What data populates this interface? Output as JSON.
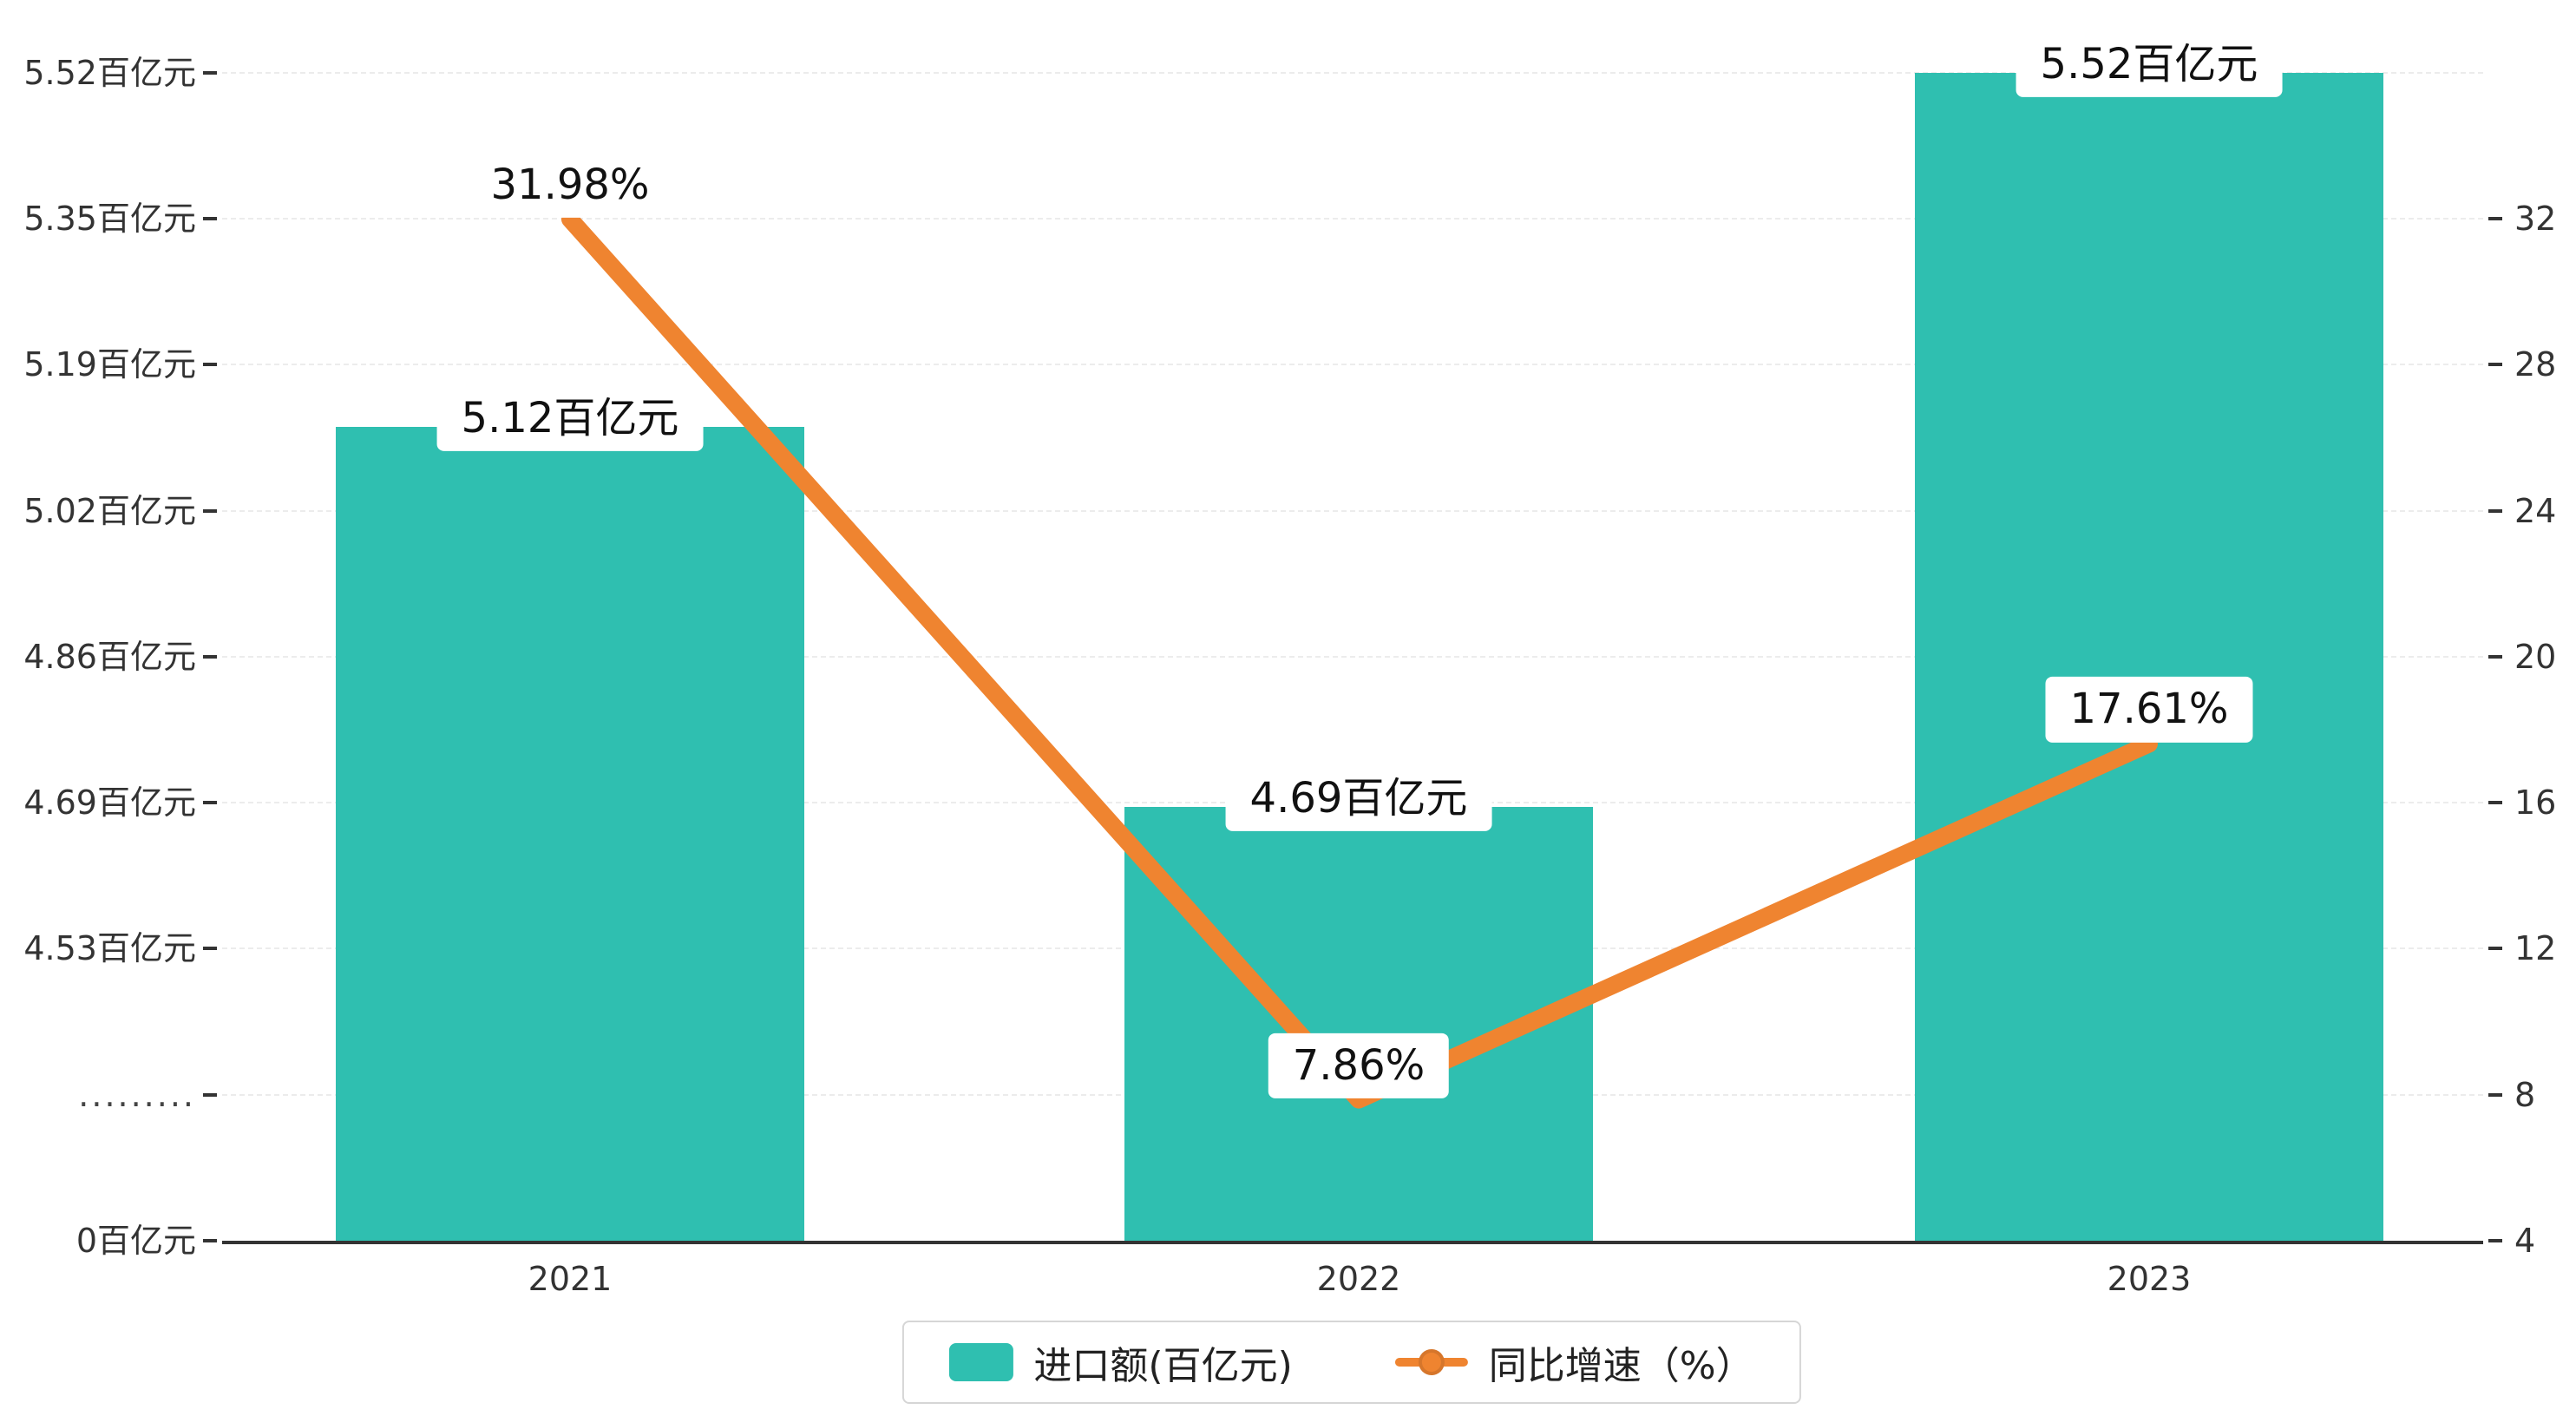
{
  "chart_data": {
    "type": "bar",
    "combo": "bar+line dual-axis",
    "categories": [
      "2021",
      "2022",
      "2023"
    ],
    "series": [
      {
        "name": "进口额(百亿元)",
        "type": "bar",
        "axis": "left",
        "color": "#2fbfb0",
        "values": [
          5.12,
          4.69,
          5.52
        ],
        "labels": [
          "5.12百亿元",
          "4.69百亿元",
          "5.52百亿元"
        ]
      },
      {
        "name": "同比增速（%）",
        "type": "line",
        "axis": "right",
        "color": "#ef8430",
        "values": [
          31.98,
          7.86,
          17.61
        ],
        "labels": [
          "31.98%",
          "7.86%",
          "17.61%"
        ]
      }
    ],
    "left_axis": {
      "tick_labels": [
        "5.52百亿元",
        "5.35百亿元",
        "5.19百亿元",
        "5.02百亿元",
        "4.86百亿元",
        "4.69百亿元",
        "4.53百亿元",
        ".........",
        "0百亿元"
      ],
      "has_break": true,
      "min": 4.53,
      "max": 5.52,
      "baseline_value": 0
    },
    "right_axis": {
      "tick_labels": [
        "32",
        "28",
        "24",
        "20",
        "16",
        "12",
        "8",
        "4"
      ],
      "min": 4,
      "max": 36,
      "interval": 4
    },
    "grid": "horizontal dashed",
    "legend": {
      "position": "bottom-center",
      "items": [
        {
          "label": "进口额(百亿元)",
          "marker": "square",
          "color": "#2fbfb0"
        },
        {
          "label": "同比增速（%）",
          "marker": "line-dot",
          "color": "#ef8430"
        }
      ]
    }
  }
}
